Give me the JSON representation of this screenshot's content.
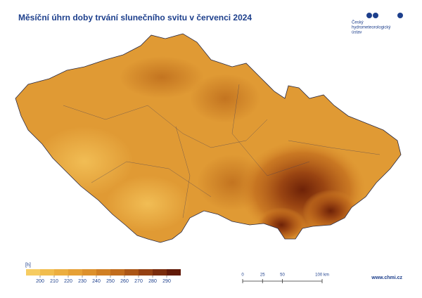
{
  "header": {
    "title": "Měsíční úhrn doby trvání slunečního svitu v červenci 2024"
  },
  "logo": {
    "lines": [
      "Český",
      "hydrometeorologický",
      "ústav"
    ]
  },
  "legend": {
    "unit": "[h]",
    "colors": [
      "#f6cc62",
      "#f1bd4e",
      "#ecae40",
      "#e6a035",
      "#dd912c",
      "#d07f23",
      "#c16c1c",
      "#ab5616",
      "#944012",
      "#7a2c0c",
      "#621a08"
    ],
    "ticks": [
      200,
      210,
      220,
      230,
      240,
      250,
      260,
      270,
      280,
      290
    ]
  },
  "scale_bar": {
    "ticks": [
      0,
      25,
      50,
      {
        "value": 100,
        "label": "100 km"
      }
    ]
  },
  "footer": {
    "url": "www.chmi.cz"
  }
}
